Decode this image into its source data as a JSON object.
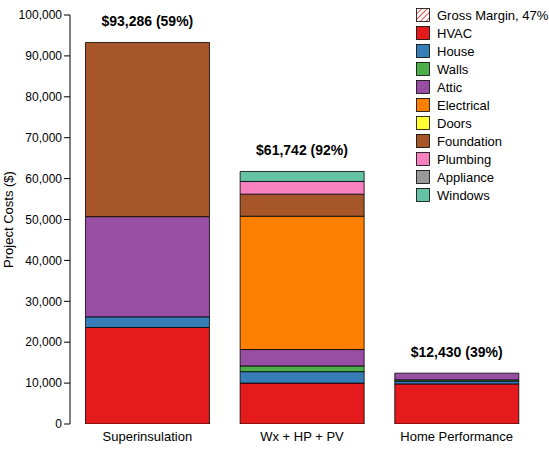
{
  "chart_data": {
    "type": "bar",
    "stacked": true,
    "categories": [
      "Superinsulation",
      "Wx + HP + PV",
      "Home Performance"
    ],
    "series": [
      {
        "name": "Gross Margin, 47%",
        "color": "#e41a1c",
        "marker": "hatch",
        "values": [
          null,
          null,
          null
        ]
      },
      {
        "name": "HVAC",
        "color": "#e41a1c",
        "values": [
          23600,
          10000,
          9800
        ]
      },
      {
        "name": "House",
        "color": "#377eb8",
        "values": [
          2600,
          2800,
          700
        ]
      },
      {
        "name": "Walls",
        "color": "#4daf4a",
        "values": [
          0,
          1400,
          300
        ]
      },
      {
        "name": "Attic",
        "color": "#984ea3",
        "values": [
          24500,
          4000,
          1630
        ]
      },
      {
        "name": "Electrical",
        "color": "#ff7f00",
        "values": [
          0,
          32600,
          0
        ]
      },
      {
        "name": "Doors",
        "color": "#ffff33",
        "values": [
          0,
          0,
          0
        ]
      },
      {
        "name": "Foundation",
        "color": "#a65628",
        "values": [
          42586,
          5400,
          0
        ]
      },
      {
        "name": "Plumbing",
        "color": "#f781bf",
        "values": [
          0,
          3100,
          0
        ]
      },
      {
        "name": "Appliance",
        "color": "#999999",
        "values": [
          0,
          0,
          0
        ]
      },
      {
        "name": "Windows",
        "color": "#66c2a5",
        "values": [
          0,
          2442,
          0
        ]
      }
    ],
    "annotations": [
      {
        "category": "Superinsulation",
        "text": "$93,286 (59%)"
      },
      {
        "category": "Wx + HP + PV",
        "text": "$61,742 (92%)"
      },
      {
        "category": "Home Performance",
        "text": "$12,430 (39%)"
      }
    ],
    "y_label": "Project Costs ($)",
    "ylim": [
      0,
      100000
    ],
    "yticks": [
      0,
      {
        "value": 10000,
        "label": "10,000"
      },
      {
        "value": 20000,
        "label": "20,000"
      },
      {
        "value": 30000,
        "label": "30,000"
      },
      {
        "value": 40000,
        "label": "40,000"
      },
      {
        "value": 50000,
        "label": "50,000"
      },
      {
        "value": 60000,
        "label": "60,000"
      },
      {
        "value": 70000,
        "label": "70,000"
      },
      {
        "value": 80000,
        "label": "80,000"
      },
      {
        "value": 90000,
        "label": "90,000"
      },
      {
        "value": 100000,
        "label": "100,000"
      }
    ],
    "legend": "top-right"
  }
}
